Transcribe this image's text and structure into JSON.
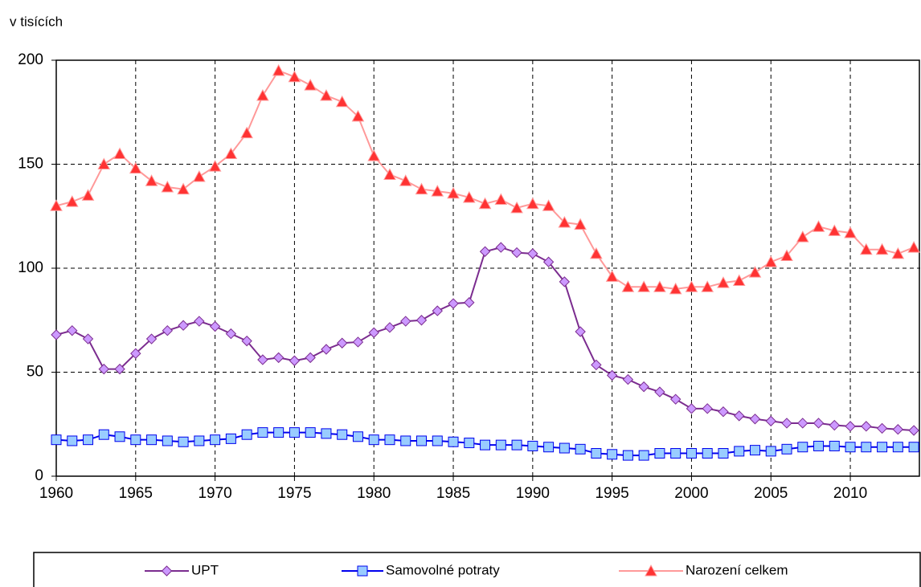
{
  "chart_data": {
    "type": "line",
    "ylabel": "v tisících",
    "x": [
      1960,
      1961,
      1962,
      1963,
      1964,
      1965,
      1966,
      1967,
      1968,
      1969,
      1970,
      1971,
      1972,
      1973,
      1974,
      1975,
      1976,
      1977,
      1978,
      1979,
      1980,
      1981,
      1982,
      1983,
      1984,
      1985,
      1986,
      1987,
      1988,
      1989,
      1990,
      1991,
      1992,
      1993,
      1994,
      1995,
      1996,
      1997,
      1998,
      1999,
      2000,
      2001,
      2002,
      2003,
      2004,
      2005,
      2006,
      2007,
      2008,
      2009,
      2010,
      2011,
      2012,
      2013,
      2014
    ],
    "series": [
      {
        "name": "UPT",
        "color": "#7b2c8f",
        "marker": "diamond",
        "marker_fill": "#cc99ff",
        "values": [
          68,
          70,
          66,
          51.5,
          51.5,
          59,
          66,
          70,
          72.5,
          74.5,
          72,
          68.5,
          65,
          56,
          57,
          55.5,
          57,
          61,
          64,
          64.5,
          69,
          71.5,
          74.5,
          75,
          79.5,
          83,
          83.5,
          108,
          110,
          107.5,
          107,
          103,
          93.5,
          69.5,
          53.5,
          48.5,
          46.5,
          43,
          40.5,
          37,
          32.5,
          32.5,
          31,
          29,
          27.5,
          26.5,
          25.5,
          25.5,
          25.5,
          24.5,
          24,
          24,
          23,
          22.5,
          22
        ]
      },
      {
        "name": "Samovolné potraty",
        "color": "#0000ee",
        "marker": "square",
        "marker_fill": "#99ccff",
        "values": [
          17.5,
          17,
          17.5,
          20,
          19,
          17.5,
          17.5,
          17,
          16.5,
          17,
          17.5,
          18,
          20,
          21,
          21,
          21,
          21,
          20.5,
          20,
          19,
          17.5,
          17.5,
          17,
          17,
          17,
          16.5,
          16,
          15,
          15,
          15,
          14.5,
          14,
          13.5,
          13,
          11,
          10.5,
          10,
          10,
          11,
          11,
          11,
          11,
          11,
          12,
          12.5,
          12,
          13,
          14,
          14.5,
          14.5,
          14,
          14,
          14,
          14,
          14
        ]
      },
      {
        "name": "Narození celkem",
        "color": "#ff9999",
        "marker": "triangle",
        "marker_fill": "#ff3333",
        "values": [
          130,
          132,
          135,
          150,
          155,
          148,
          142,
          139,
          138,
          144,
          149,
          155,
          165,
          183,
          195,
          192,
          188,
          183,
          180,
          173,
          154,
          145,
          142,
          138,
          137,
          136,
          134,
          131,
          133,
          129,
          131,
          130,
          122,
          121,
          107,
          96,
          91,
          91,
          91,
          90,
          91,
          91,
          93,
          94,
          98,
          103,
          106,
          115,
          120,
          118,
          117,
          109,
          109,
          107,
          110
        ]
      }
    ],
    "xlim": [
      1960,
      2014.4
    ],
    "xticks": [
      1960,
      1965,
      1970,
      1975,
      1980,
      1985,
      1990,
      1995,
      2000,
      2005,
      2010
    ],
    "ylim": [
      0,
      200
    ],
    "yticks": [
      0,
      50,
      100,
      150,
      200
    ],
    "grid": true,
    "legend": "bottom"
  }
}
